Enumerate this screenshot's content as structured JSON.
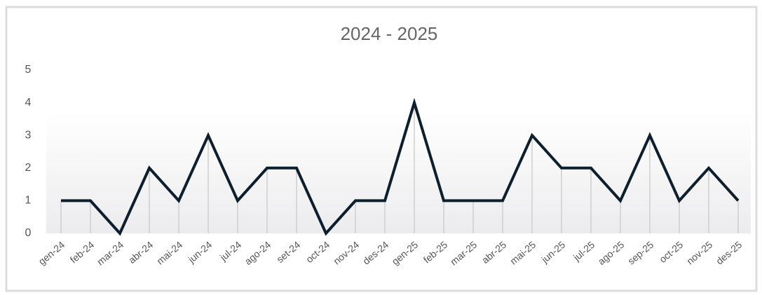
{
  "chart_data": {
    "type": "line",
    "title": "2024 - 2025",
    "categories": [
      "gen-24",
      "feb-24",
      "mar-24",
      "abr-24",
      "mai-24",
      "jun-24",
      "jul-24",
      "ago-24",
      "set-24",
      "oct-24",
      "nov-24",
      "des-24",
      "gen-25",
      "feb-25",
      "mar-25",
      "abr-25",
      "mai-25",
      "jun-25",
      "jul-25",
      "ago-25",
      "sep-25",
      "oct-25",
      "nov-25",
      "des-25"
    ],
    "values": [
      1,
      1,
      0,
      2,
      1,
      3,
      1,
      2,
      2,
      0,
      1,
      1,
      4,
      1,
      1,
      1,
      3,
      2,
      2,
      1,
      3,
      1,
      2,
      1
    ],
    "color": "#0d1f2d",
    "ylim": [
      0,
      5
    ],
    "yticks": [
      0,
      1,
      2,
      3,
      4,
      5
    ]
  }
}
